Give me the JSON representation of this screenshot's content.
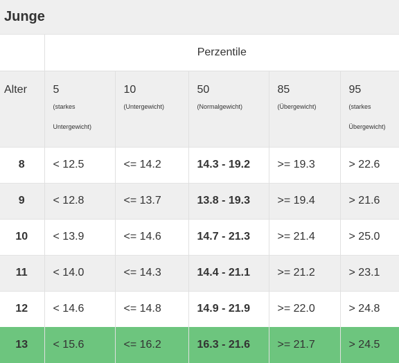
{
  "title": "Junge",
  "percentile_caption": "Perzentile",
  "alter_label": "Alter",
  "columns": [
    {
      "number": "5",
      "desc": "(starkes Untergewicht)"
    },
    {
      "number": "10",
      "desc": "(Untergewicht)"
    },
    {
      "number": "50",
      "desc": "(Normalgewicht)"
    },
    {
      "number": "85",
      "desc": "(Übergewicht)"
    },
    {
      "number": "95",
      "desc": "(starkes Übergewicht)"
    }
  ],
  "rows": [
    {
      "age": "8",
      "p5": "< 12.5",
      "p10": "<= 14.2",
      "p50": "14.3 - 19.2",
      "p85": ">= 19.3",
      "p95": "> 22.6"
    },
    {
      "age": "9",
      "p5": "< 12.8",
      "p10": "<= 13.7",
      "p50": "13.8 - 19.3",
      "p85": ">= 19.4",
      "p95": "> 21.6"
    },
    {
      "age": "10",
      "p5": "< 13.9",
      "p10": "<= 14.6",
      "p50": "14.7 - 21.3",
      "p85": ">= 21.4",
      "p95": "> 25.0"
    },
    {
      "age": "11",
      "p5": "< 14.0",
      "p10": "<= 14.3",
      "p50": "14.4 - 21.1",
      "p85": ">= 21.2",
      "p95": "> 23.1"
    },
    {
      "age": "12",
      "p5": "< 14.6",
      "p10": "<= 14.8",
      "p50": "14.9 - 21.9",
      "p85": ">= 22.0",
      "p95": "> 24.8"
    },
    {
      "age": "13",
      "p5": "< 15.6",
      "p10": "<= 16.2",
      "p50": "16.3 - 21.6",
      "p85": ">= 21.7",
      "p95": "> 24.5"
    }
  ],
  "highlight_color": "#6dc57e"
}
